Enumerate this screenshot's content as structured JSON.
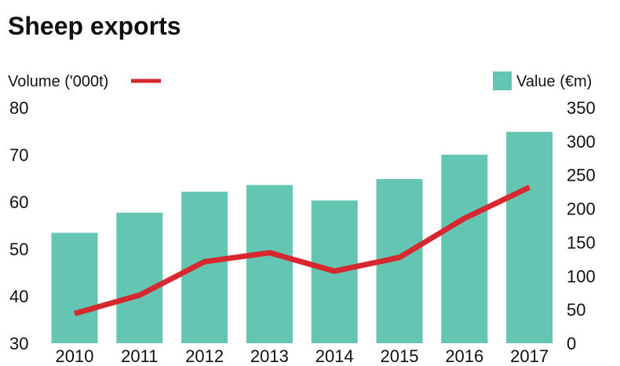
{
  "chart_data": {
    "type": "bar+line",
    "title": "Sheep exports",
    "categories": [
      "2010",
      "2011",
      "2012",
      "2013",
      "2014",
      "2015",
      "2016",
      "2017"
    ],
    "series": [
      {
        "name": "Value (€m)",
        "type": "bar",
        "axis": "right",
        "color": "#63c5b2",
        "values": [
          164,
          194,
          225,
          235,
          212,
          244,
          280,
          314
        ]
      },
      {
        "name": "Volume ('000t)",
        "type": "line",
        "axis": "left",
        "color": "#d7282f",
        "values": [
          36.3,
          40.2,
          47.3,
          49.2,
          45.3,
          48.2,
          56.5,
          63.1
        ]
      }
    ],
    "left_axis": {
      "label": "Volume ('000t)",
      "ylim": [
        30,
        80
      ],
      "ticks": [
        "30",
        "40",
        "50",
        "60",
        "70",
        "80"
      ]
    },
    "right_axis": {
      "label": "Value (€m)",
      "ylim": [
        0,
        350
      ],
      "ticks": [
        "0",
        "50",
        "100",
        "150",
        "200",
        "250",
        "300",
        "350"
      ]
    },
    "grid": false,
    "legend": {
      "volume_placement": "top-left",
      "value_placement": "top-right"
    }
  }
}
